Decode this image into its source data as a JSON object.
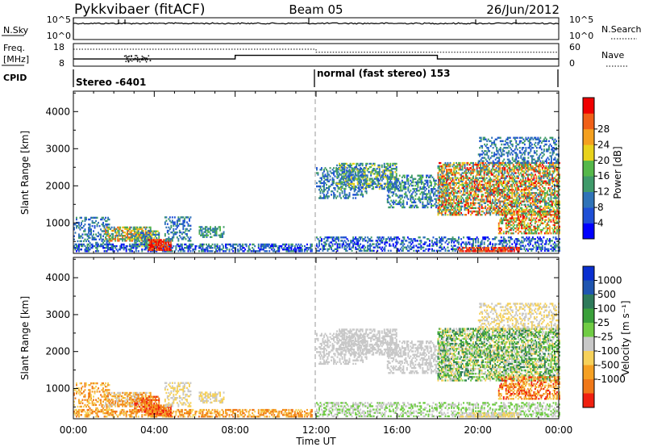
{
  "header": {
    "station": "Pykkvibaer (fitACF)",
    "beam": "Beam 05",
    "date": "26/Jun/2012"
  },
  "noise_panel": {
    "left_label": "N.Sky",
    "left_top": "10^5",
    "left_bottom": "10^0",
    "right_top": "10^5",
    "right_bottom": "10^0",
    "right_label": "N.Search"
  },
  "freq_panel": {
    "left_label_1": "Freq.",
    "left_label_2": "[MHz]",
    "left_top": "18",
    "left_bottom": "8",
    "right_top": "60",
    "right_bottom": "0",
    "right_label": "Nave"
  },
  "cpid": {
    "label": "CPID",
    "mode_1": "Stereo -6401",
    "mode_2": "normal (fast stereo) 153"
  },
  "chart_data": [
    {
      "type": "heatmap",
      "name": "power",
      "ylabel": "Slant Range [km]",
      "yticks": [
        "1000",
        "2000",
        "3000",
        "4000"
      ],
      "ylim": [
        180,
        4550
      ],
      "xlim": [
        0,
        24
      ],
      "colorbar_label": "Power [dB]",
      "colorbar_ticks": [
        "4",
        "8",
        "12",
        "16",
        "20",
        "24",
        "28"
      ],
      "colors": [
        "#0000ff",
        "#1f4fd6",
        "#2f73b8",
        "#3f9a6a",
        "#55b84a",
        "#e8d21c",
        "#f4a020",
        "#f06018",
        "#f00000"
      ]
    },
    {
      "type": "heatmap",
      "name": "velocity",
      "ylabel": "Slant Range [km]",
      "yticks": [
        "1000",
        "2000",
        "3000",
        "4000"
      ],
      "ylim": [
        180,
        4550
      ],
      "xlim": [
        0,
        24
      ],
      "colorbar_label": "Velocity [m s⁻¹]",
      "colorbar_ticks": [
        "1000",
        "500",
        "100",
        "25",
        "-25",
        "-100",
        "-500",
        "-1000"
      ],
      "colors": [
        "#0a2fd0",
        "#1f55b0",
        "#2e7a5a",
        "#3aa03a",
        "#70cc44",
        "#c8c8c8",
        "#f6d15a",
        "#f5a023",
        "#f07818",
        "#f02010"
      ]
    }
  ],
  "xaxis": {
    "ticks": [
      "00:00",
      "04:00",
      "08:00",
      "12:00",
      "16:00",
      "20:00",
      "00:00"
    ],
    "label": "Time UT"
  }
}
